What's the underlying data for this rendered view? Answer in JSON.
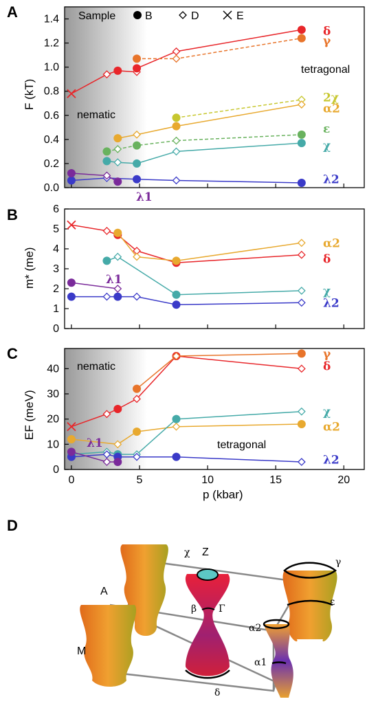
{
  "colors": {
    "delta": "#e8262a",
    "gamma": "#e8742a",
    "chi2": "#c7c72f",
    "alpha2": "#e8a92f",
    "epsilon": "#69b25e",
    "chi": "#45aaa8",
    "lambda2": "#3a3ac8",
    "lambda1": "#7a2a9a",
    "E": "#e8262a"
  },
  "panelA": {
    "panel_label": "A",
    "ylabel": "F (kT)",
    "region_left": "nematic",
    "region_right": "tetragonal",
    "legend": {
      "title": "Sample",
      "items": [
        {
          "marker": "circle",
          "label": "B"
        },
        {
          "marker": "diamond",
          "label": "D"
        },
        {
          "marker": "cross",
          "label": "E"
        }
      ]
    },
    "yticks": [
      "0.0",
      "0.2",
      "0.4",
      "0.6",
      "0.8",
      "1.0",
      "1.2",
      "1.4"
    ],
    "band_labels": [
      {
        "text": "δ",
        "color": "#e8262a",
        "y": 1.3
      },
      {
        "text": "γ",
        "color": "#e8742a",
        "y": 1.22
      },
      {
        "text": "2χ",
        "color": "#c7c72f",
        "y": 0.75
      },
      {
        "text": "α2",
        "color": "#e8a92f",
        "y": 0.66
      },
      {
        "text": "ε",
        "color": "#69b25e",
        "y": 0.49
      },
      {
        "text": "χ",
        "color": "#45aaa8",
        "y": 0.35
      },
      {
        "text": "λ2",
        "color": "#3a3ac8",
        "y": 0.07
      }
    ],
    "below_label": "λ1"
  },
  "panelB": {
    "panel_label": "B",
    "ylabel": "m* (me)",
    "yticks": [
      "0",
      "1",
      "2",
      "3",
      "4",
      "5",
      "6"
    ],
    "band_labels": [
      {
        "text": "α2",
        "color": "#e8a92f",
        "y": 4.3
      },
      {
        "text": "δ",
        "color": "#e8262a",
        "y": 3.5
      },
      {
        "text": "χ",
        "color": "#45aaa8",
        "y": 1.9
      },
      {
        "text": "λ2",
        "color": "#3a3ac8",
        "y": 1.3
      }
    ],
    "inner_label": "λ1"
  },
  "panelC": {
    "panel_label": "C",
    "ylabel": "EF (meV)",
    "region_left": "nematic",
    "region_right": "tetragonal",
    "yticks": [
      "0",
      "10",
      "20",
      "30",
      "40"
    ],
    "xticks": [
      "0",
      "5",
      "10",
      "15",
      "20"
    ],
    "xlabel": "p (kbar)",
    "band_labels": [
      {
        "text": "γ",
        "color": "#e8742a",
        "y": 46
      },
      {
        "text": "δ",
        "color": "#e8262a",
        "y": 41
      },
      {
        "text": "χ",
        "color": "#45aaa8",
        "y": 23
      },
      {
        "text": "α2",
        "color": "#e8a92f",
        "y": 17
      },
      {
        "text": "λ2",
        "color": "#3a3ac8",
        "y": 4
      }
    ],
    "inner_label": "λ1"
  },
  "panelD": {
    "panel_label": "D",
    "labels": {
      "A": "A",
      "M": "M",
      "Z": "Z",
      "Gamma": "Γ",
      "chi": "χ",
      "beta": "β",
      "delta": "δ",
      "gamma": "γ",
      "epsilon": "ε",
      "alpha2": "α2",
      "alpha1": "α1"
    }
  },
  "chart_data": [
    {
      "type": "scatter",
      "title": "",
      "xlabel": "p (kbar)",
      "ylabel": "F (kT)",
      "xlim": [
        -0.5,
        21.5
      ],
      "ylim": [
        0,
        1.5
      ],
      "series": [
        {
          "name": "δ",
          "color": "#e8262a",
          "x": [
            0,
            2.6,
            3.4,
            4.8,
            4.8,
            7.7,
            16.9
          ],
          "y": [
            0.78,
            0.94,
            0.97,
            0.96,
            0.99,
            1.13,
            1.31
          ],
          "fit": "solid"
        },
        {
          "name": "γ",
          "color": "#e8742a",
          "x": [
            4.8,
            7.7,
            16.9
          ],
          "y": [
            1.07,
            1.07,
            1.24
          ],
          "fit": "dashed"
        },
        {
          "name": "2χ",
          "color": "#c7c72f",
          "x": [
            7.7,
            16.9
          ],
          "y": [
            0.58,
            0.73
          ],
          "fit": "dashed"
        },
        {
          "name": "α2",
          "color": "#e8a92f",
          "x": [
            3.4,
            4.8,
            7.7,
            16.9
          ],
          "y": [
            0.41,
            0.44,
            0.51,
            0.69
          ],
          "fit": "solid"
        },
        {
          "name": "ε",
          "color": "#69b25e",
          "x": [
            2.6,
            3.4,
            4.8,
            7.7,
            16.9
          ],
          "y": [
            0.3,
            0.32,
            0.35,
            0.39,
            0.44
          ],
          "fit": "dashed"
        },
        {
          "name": "χ",
          "color": "#45aaa8",
          "x": [
            2.6,
            3.4,
            4.8,
            7.7,
            16.9
          ],
          "y": [
            0.22,
            0.21,
            0.2,
            0.3,
            0.37
          ],
          "fit": "solid"
        },
        {
          "name": "λ2",
          "color": "#3a3ac8",
          "x": [
            0,
            2.6,
            4.8,
            7.7,
            16.9
          ],
          "y": [
            0.06,
            0.08,
            0.07,
            0.06,
            0.04
          ],
          "fit": "solid"
        },
        {
          "name": "λ1",
          "color": "#7a2a9a",
          "x": [
            0,
            2.6,
            3.4
          ],
          "y": [
            0.12,
            0.1,
            0.05
          ],
          "fit": "solid"
        }
      ]
    },
    {
      "type": "scatter",
      "title": "",
      "xlabel": "p (kbar)",
      "ylabel": "m* (me)",
      "xlim": [
        -0.5,
        21.5
      ],
      "ylim": [
        0,
        6
      ],
      "series": [
        {
          "name": "δ",
          "color": "#e8262a",
          "x": [
            0,
            2.6,
            3.4,
            4.8,
            7.7,
            16.9
          ],
          "y": [
            5.2,
            4.9,
            4.7,
            3.9,
            3.3,
            3.7
          ]
        },
        {
          "name": "α2",
          "color": "#e8a92f",
          "x": [
            3.4,
            4.8,
            7.7,
            16.9
          ],
          "y": [
            4.8,
            3.6,
            3.4,
            4.3
          ]
        },
        {
          "name": "χ",
          "color": "#45aaa8",
          "x": [
            2.6,
            3.4,
            7.7,
            16.9
          ],
          "y": [
            3.4,
            3.6,
            1.7,
            1.9
          ]
        },
        {
          "name": "λ2",
          "color": "#3a3ac8",
          "x": [
            0,
            2.6,
            3.4,
            4.8,
            7.7,
            16.9
          ],
          "y": [
            1.6,
            1.6,
            1.6,
            1.6,
            1.2,
            1.3
          ]
        },
        {
          "name": "λ1",
          "color": "#7a2a9a",
          "x": [
            0,
            3.4
          ],
          "y": [
            2.3,
            2.0
          ]
        }
      ]
    },
    {
      "type": "scatter",
      "title": "",
      "xlabel": "p (kbar)",
      "ylabel": "EF (meV)",
      "xlim": [
        -0.5,
        21.5
      ],
      "ylim": [
        0,
        48
      ],
      "series": [
        {
          "name": "δ",
          "color": "#e8262a",
          "x": [
            0,
            2.6,
            3.4,
            4.8,
            7.7,
            16.9
          ],
          "y": [
            17,
            22,
            24,
            28,
            45,
            40
          ]
        },
        {
          "name": "γ",
          "color": "#e8742a",
          "x": [
            4.8,
            7.7,
            16.9
          ],
          "y": [
            32,
            45,
            46
          ]
        },
        {
          "name": "α2",
          "color": "#e8a92f",
          "x": [
            0,
            3.4,
            4.8,
            7.7,
            16.9
          ],
          "y": [
            12,
            10,
            15,
            17,
            18
          ]
        },
        {
          "name": "χ",
          "color": "#45aaa8",
          "x": [
            0,
            2.6,
            3.4,
            4.8,
            7.7,
            16.9
          ],
          "y": [
            6,
            7,
            6,
            6,
            20,
            23
          ]
        },
        {
          "name": "λ2",
          "color": "#3a3ac8",
          "x": [
            0,
            2.6,
            3.4,
            4.8,
            7.7,
            16.9
          ],
          "y": [
            5,
            6,
            5,
            5,
            5,
            3
          ]
        },
        {
          "name": "λ1",
          "color": "#7a2a9a",
          "x": [
            0,
            2.6,
            3.4
          ],
          "y": [
            7,
            3,
            3
          ]
        }
      ]
    }
  ]
}
